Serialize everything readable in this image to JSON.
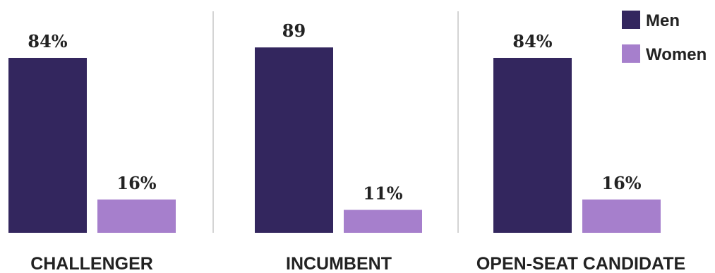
{
  "chart_data": {
    "type": "bar",
    "categories": [
      "CHALLENGER",
      "INCUMBENT",
      "OPEN-SEAT CANDIDATE"
    ],
    "series": [
      {
        "name": "Men",
        "color": "#33265e",
        "values": [
          84,
          89,
          84
        ],
        "value_labels": [
          "84%",
          "89",
          "84%"
        ]
      },
      {
        "name": "Women",
        "color": "#a67fcc",
        "values": [
          16,
          11,
          16
        ],
        "value_labels": [
          "16%",
          "11%",
          "16%"
        ]
      }
    ],
    "ylim": [
      0,
      100
    ],
    "grid": false,
    "legend_position": "top-right",
    "group_separators": true,
    "separator_color": "#aaaaaa",
    "title": "",
    "xlabel": "",
    "ylabel": ""
  }
}
